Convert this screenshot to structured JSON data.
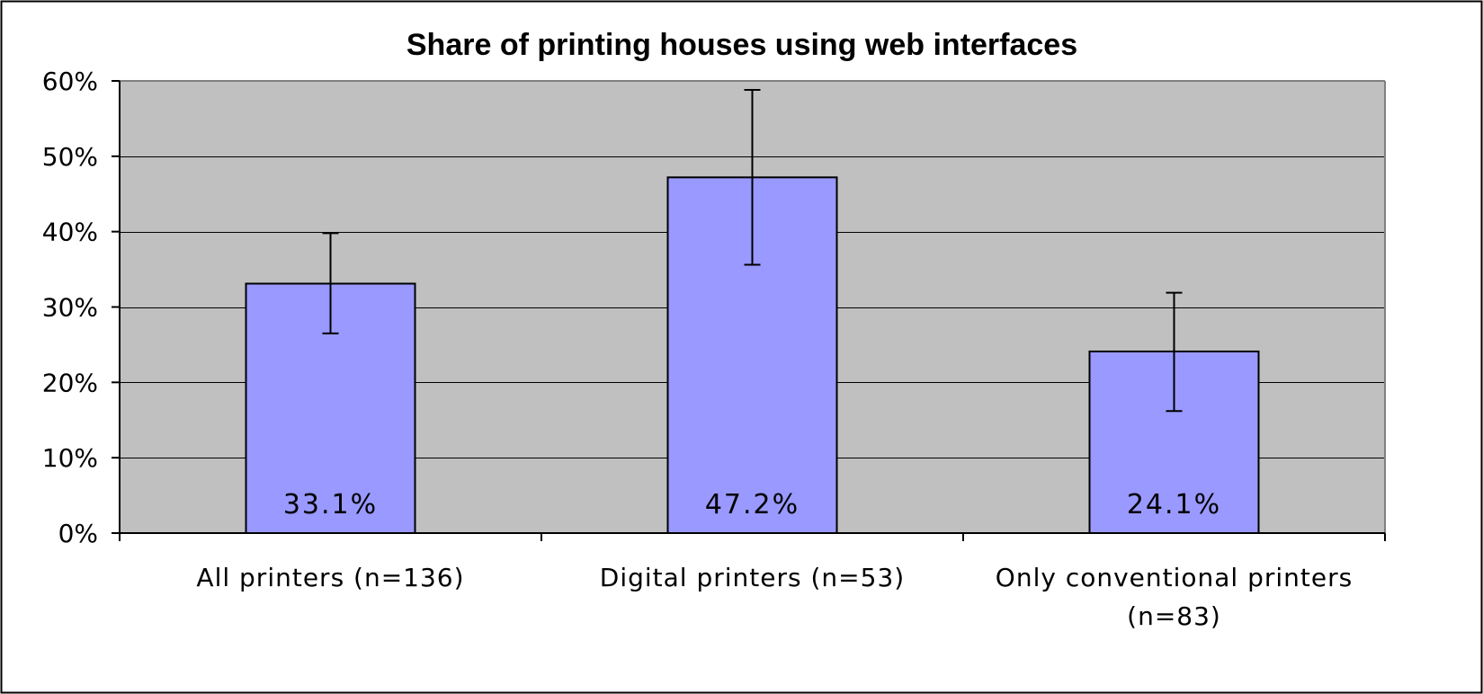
{
  "chart_data": {
    "type": "bar",
    "title": "Share of printing houses using web interfaces",
    "xlabel": "",
    "ylabel": "",
    "categories": [
      "All printers (n=136)",
      "Digital printers (n=53)",
      "Only conventional printers (n=83)"
    ],
    "values": [
      33.1,
      47.2,
      24.1
    ],
    "data_labels": [
      "33.1%",
      "47.2%",
      "24.1%"
    ],
    "error_bars": [
      {
        "low": 26.5,
        "high": 39.8
      },
      {
        "low": 35.6,
        "high": 58.8
      },
      {
        "low": 16.2,
        "high": 31.9
      }
    ],
    "ylim": [
      0,
      60
    ],
    "yticks": [
      0,
      10,
      20,
      30,
      40,
      50,
      60
    ],
    "ytick_labels": [
      "0%",
      "10%",
      "20%",
      "30%",
      "40%",
      "50%",
      "60%"
    ],
    "grid": true,
    "legend": "none",
    "colors": {
      "bar_fill": "#9999ff",
      "plot_background": "#c0c0c0",
      "gridline": "#000000",
      "frame": "#000000"
    }
  }
}
